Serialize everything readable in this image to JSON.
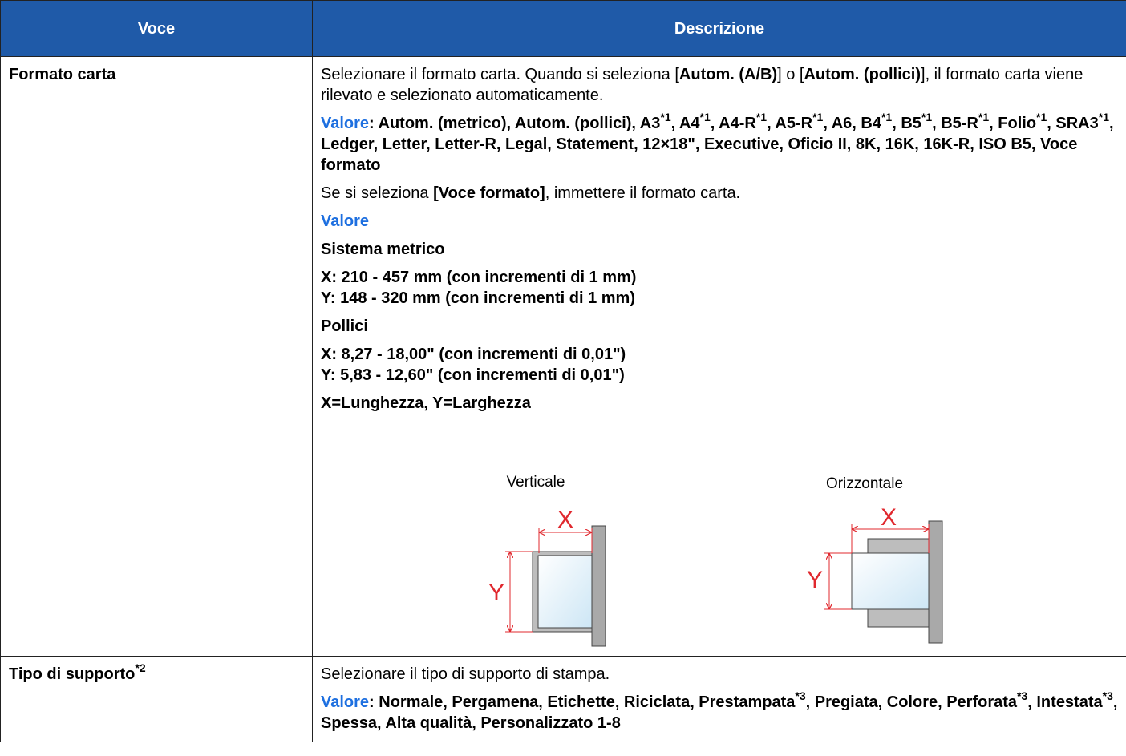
{
  "table": {
    "header": [
      "Voce",
      "Descrizione"
    ],
    "rows": [
      {
        "item": [
          "Formato carta"
        ],
        "description": {
          "intro": [
            "Selezionare il formato carta. Quando si seleziona [",
            "Autom. (A/B)",
            "] o [",
            "Autom. (pollici)",
            "], il formato carta viene rilevato e selezionato automaticamente."
          ],
          "values_label": "Valore",
          "values": [
            ": Autom. (metrico), Autom. (pollici), A3",
            "*1",
            ", A4",
            "*1",
            ", A4-R",
            "*1",
            ", A5-R",
            "*1",
            ", A6, B4",
            "*1",
            ", B5",
            "*1",
            ", B5-R",
            "*1",
            ", Folio",
            "*1",
            ", SRA3",
            "*1",
            ", Ledger, Letter, Letter-R, Legal, Statement, 12×18\", Executive, Oficio II, 8K, 16K, 16K-R, ISO B5, Voce formato"
          ],
          "custom_note": [
            "Se si seleziona ",
            "[Voce formato]",
            ", immettere il formato carta."
          ],
          "custom_label": "Valore",
          "metric_title": "Sistema metrico",
          "metric": [
            "X: 210 - 457 mm (con incrementi di 1 mm)",
            "Y: 148 - 320 mm (con incrementi di 1 mm)"
          ],
          "inch_title": "Pollici",
          "inch": [
            "X: 8,27 - 18,00\" (con incrementi di 0,01\")",
            "Y: 5,83 - 12,60\" (con incrementi di 0,01\")"
          ],
          "legend": "X=Lunghezza, Y=Larghezza",
          "diagram": {
            "portrait": {
              "label": "Verticale",
              "x": "X",
              "y": "Y"
            },
            "landscape": {
              "label": "Orizzontale",
              "x": "X",
              "y": "Y"
            }
          }
        }
      },
      {
        "item": [
          "Tipo di supporto",
          "*2"
        ],
        "description": {
          "intro": [
            "Selezionare il tipo di supporto di stampa."
          ],
          "values_label": "Valore",
          "values": [
            ": Normale, Pergamena, Etichette, Riciclata, Prestampata",
            "*3",
            ", Pregiata, Colore, Perforata",
            "*3",
            ", Intestata",
            "*3",
            ", Spessa, Alta qualità, Personalizzato 1-8"
          ]
        }
      }
    ]
  }
}
